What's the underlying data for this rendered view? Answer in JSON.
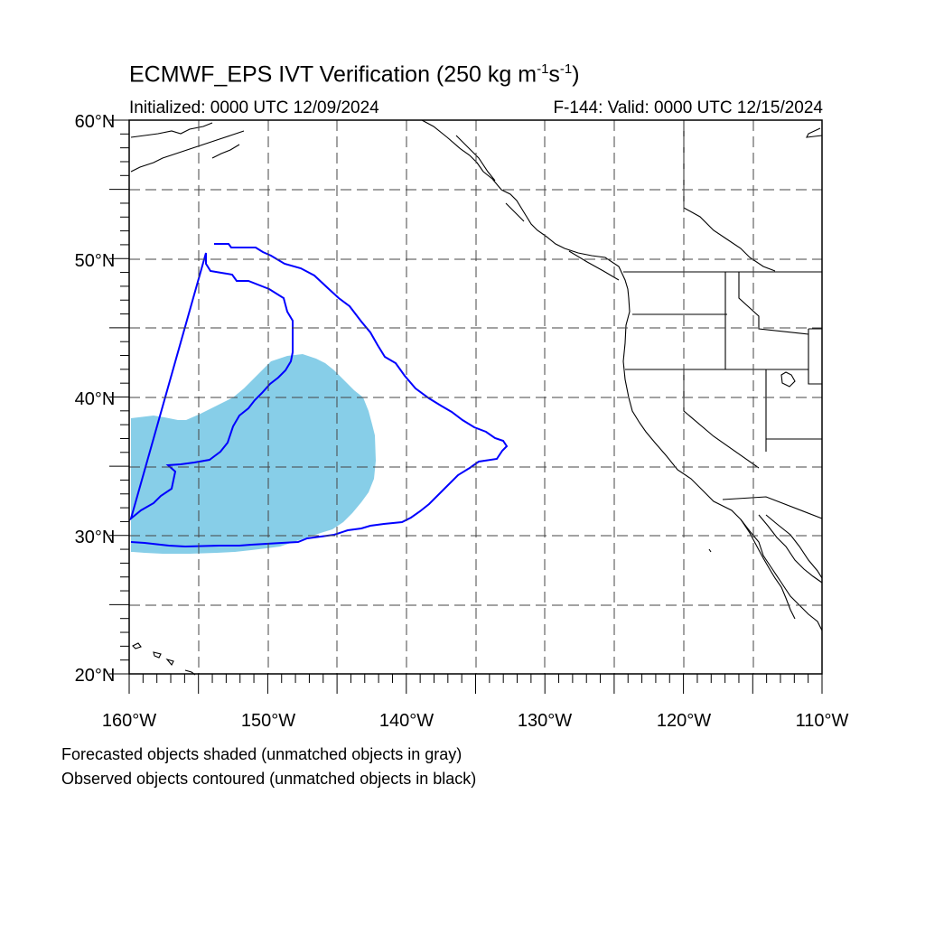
{
  "title": {
    "main": "ECMWF_EPS IVT Verification (250 kg m",
    "sup1": "-1",
    "mid": "s",
    "sup2": "-1",
    "end": ")"
  },
  "initialized": "Initialized: 0000 UTC 12/09/2024",
  "valid": "F-144: Valid: 0000 UTC 12/15/2024",
  "map": {
    "lon_range": [
      -160,
      -110
    ],
    "lat_range": [
      20,
      60
    ],
    "lon_tick_labels": [
      "160°W",
      "150°W",
      "140°W",
      "130°W",
      "120°W",
      "110°W"
    ],
    "lat_tick_labels": [
      "20°N",
      "30°N",
      "40°N",
      "50°N",
      "60°N"
    ],
    "gridline_style": "dashed",
    "forecast_object_color": "#87CEE8",
    "observed_object_color": "#0000FF",
    "coastline_color": "#000000"
  },
  "legend": {
    "forecast_note": "Forecasted objects shaded (unmatched objects in gray)",
    "observed_note": "Observed objects contoured (unmatched objects in black)"
  }
}
